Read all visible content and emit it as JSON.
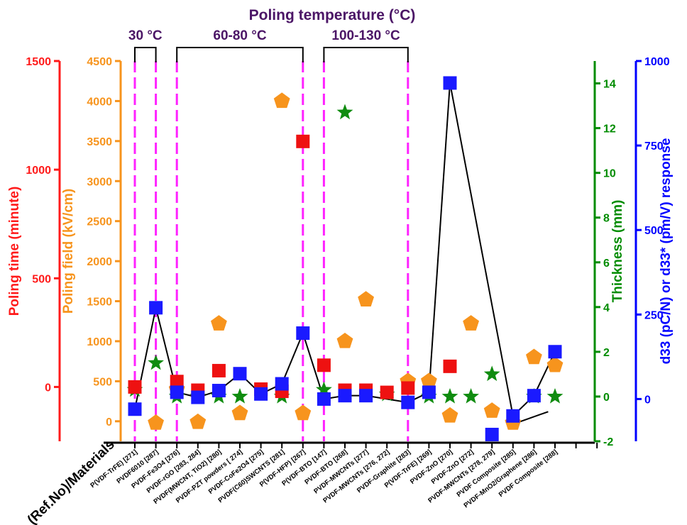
{
  "chart_data": {
    "type": "scatter",
    "title": "Poling temperature (°C)",
    "xlabel": "(Ref.No)/Materials",
    "categories": [
      "P(VDF-TrFE) [271]",
      "PVDF6010 [287]",
      "PVDF-Fe3O4 [276]",
      "PVDF-rGO [283, 284]",
      "PVDF(MWCNT, TiO2) [280]",
      "PVDF-PZT powders [ 274]",
      "PVDF-CoFe2O4 [275]",
      "PVDF(C60)SWCNTS [281]",
      "P(VDF-HFP) [267]",
      "P(VDF-BTO [147]",
      "PVDF-BTO [268]",
      "PVDF-MWCNTs [277]",
      "PVDF-MWCNTs [276, 272]",
      "PVDF-Graphite [283]",
      "P(VDF-TrFE) [269]",
      "PVDF-ZnO [270]",
      "PVDF-ZnO [272]",
      "PVDF-MWCNTs [278, 279]",
      "PVDF Composite [285]",
      "PVDF-MnO2/Graphene [286]",
      "PVDF Composite [288]"
    ],
    "temperature_groups": [
      {
        "label": "30 °C",
        "from": 0,
        "to": 1
      },
      {
        "label": "60-80 °C",
        "from": 2,
        "to": 8
      },
      {
        "label": "100-130 °C",
        "from": 9,
        "to": 13
      }
    ],
    "axes": [
      {
        "key": "time",
        "label": "Poling time (minute)",
        "color": "#ff1a1a",
        "ylim": [
          -250,
          1500
        ],
        "ticks": [
          0,
          500,
          1000,
          1500
        ]
      },
      {
        "key": "field",
        "label": "Poling field (kV/cm)",
        "color": "#f7941d",
        "ylim": [
          -250,
          4500
        ],
        "ticks": [
          0,
          500,
          1000,
          1500,
          2000,
          2500,
          3000,
          3500,
          4000,
          4500
        ]
      },
      {
        "key": "thickness",
        "label": "Thickness (mm)",
        "color": "#008c00",
        "ylim": [
          -2,
          15
        ],
        "ticks": [
          -2,
          0,
          2,
          4,
          6,
          8,
          10,
          12,
          14
        ]
      },
      {
        "key": "d33",
        "label": "d33 (pC/N) or d33* (pm/V) response",
        "color": "#0000ff",
        "ylim": [
          -125,
          1000
        ],
        "ticks": [
          0,
          250,
          500,
          750,
          1000
        ]
      }
    ],
    "series": [
      {
        "name": "Poling time",
        "axis": "time",
        "marker": "square",
        "color": "#ee1111",
        "points": [
          [
            0,
            0
          ],
          [
            2,
            25
          ],
          [
            3,
            -15
          ],
          [
            4,
            75
          ],
          [
            6,
            -10
          ],
          [
            7,
            -20
          ],
          [
            8,
            1130
          ],
          [
            9,
            100
          ],
          [
            10,
            -15
          ],
          [
            11,
            -15
          ],
          [
            12,
            -25
          ],
          [
            13,
            -5
          ],
          [
            15,
            95
          ]
        ]
      },
      {
        "name": "Poling field",
        "axis": "field",
        "marker": "pentagon",
        "color": "#f7941d",
        "points": [
          [
            1,
            -20
          ],
          [
            2,
            400
          ],
          [
            3,
            -10
          ],
          [
            4,
            1220
          ],
          [
            5,
            100
          ],
          [
            7,
            4000
          ],
          [
            8,
            100
          ],
          [
            10,
            1000
          ],
          [
            11,
            1520
          ],
          [
            13,
            500
          ],
          [
            14,
            500
          ],
          [
            15,
            70
          ],
          [
            16,
            1220
          ],
          [
            17,
            130
          ],
          [
            18,
            -20
          ],
          [
            19,
            800
          ],
          [
            20,
            700
          ]
        ]
      },
      {
        "name": "Thickness",
        "axis": "thickness",
        "marker": "star",
        "color": "#108c10",
        "points": [
          [
            0,
            0.3
          ],
          [
            1,
            1.5
          ],
          [
            2,
            0
          ],
          [
            3,
            0
          ],
          [
            4,
            0
          ],
          [
            5,
            0
          ],
          [
            7,
            0
          ],
          [
            9,
            0.3
          ],
          [
            10,
            12.7
          ],
          [
            12,
            0.1
          ],
          [
            14,
            0
          ],
          [
            15,
            0
          ],
          [
            16,
            0
          ],
          [
            17,
            1
          ],
          [
            19,
            0
          ],
          [
            20,
            0
          ]
        ]
      },
      {
        "name": "d33",
        "axis": "d33",
        "marker": "square",
        "color": "#1a1aff",
        "points": [
          [
            0,
            -30
          ],
          [
            1,
            270
          ],
          [
            2,
            20
          ],
          [
            3,
            5
          ],
          [
            4,
            25
          ],
          [
            5,
            75
          ],
          [
            6,
            15
          ],
          [
            7,
            45
          ],
          [
            8,
            195
          ],
          [
            9,
            0
          ],
          [
            10,
            10
          ],
          [
            11,
            10
          ],
          [
            13,
            -10
          ],
          [
            14,
            20
          ],
          [
            15,
            935
          ],
          [
            17,
            -105
          ],
          [
            18,
            -50
          ],
          [
            19,
            10
          ],
          [
            20,
            140
          ]
        ]
      }
    ],
    "connector_line": [
      [
        0,
        -30
      ],
      [
        1,
        270
      ],
      [
        2,
        20
      ],
      [
        3,
        5
      ],
      [
        4,
        25
      ],
      [
        5,
        75
      ],
      [
        6,
        15
      ],
      [
        7,
        45
      ],
      [
        8,
        195
      ],
      [
        9,
        0
      ],
      [
        10,
        10
      ],
      [
        11,
        10
      ],
      [
        13,
        -10
      ],
      [
        14,
        20
      ],
      [
        15,
        935
      ],
      [
        18,
        -50
      ],
      [
        19,
        10
      ],
      [
        20,
        140
      ]
    ]
  }
}
